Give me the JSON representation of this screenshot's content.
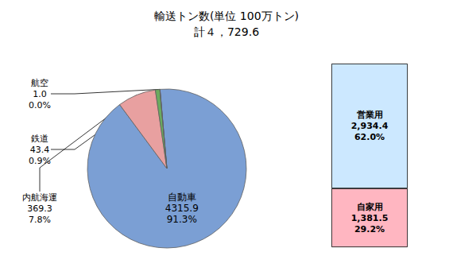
{
  "chart_data": [
    {
      "type": "pie",
      "title": "輸送トン数(単位 100万トン)",
      "subtitle": "計４，729.6",
      "categories": [
        "自動車",
        "内航海運",
        "鉄道",
        "航空"
      ],
      "values": [
        4315.9,
        369.3,
        43.4,
        1.0
      ],
      "value_labels": [
        "4315.9",
        "369.3",
        "43.4",
        "1.0"
      ],
      "percent": [
        91.3,
        7.8,
        0.9,
        0.0
      ],
      "percent_labels": [
        "91.3%",
        "7.8%",
        "0.9%",
        "0.0%"
      ],
      "colors": [
        "#7B9FD4",
        "#E8A0A0",
        "#6AAB5E",
        "#7B9FD4"
      ],
      "data_labels": true
    },
    {
      "type": "bar",
      "stacked": true,
      "categories": [
        null
      ],
      "series": [
        {
          "name": "自家用",
          "color": "#FFB6C1",
          "values": [
            29.2
          ],
          "value_labels": [
            "29.2%"
          ],
          "tonnage": [
            1381.5
          ],
          "tonnage_labels": [
            "1,381.5"
          ]
        },
        {
          "name": "営業用",
          "color": "#CCE8FF",
          "values": [
            62.0
          ],
          "value_labels": [
            "62.0%"
          ],
          "tonnage": [
            2934.4
          ],
          "tonnage_labels": [
            "2,934.4"
          ]
        }
      ],
      "ylim": [
        0,
        91.2
      ],
      "tick_labels": false,
      "grid": false,
      "data_labels": true
    }
  ]
}
